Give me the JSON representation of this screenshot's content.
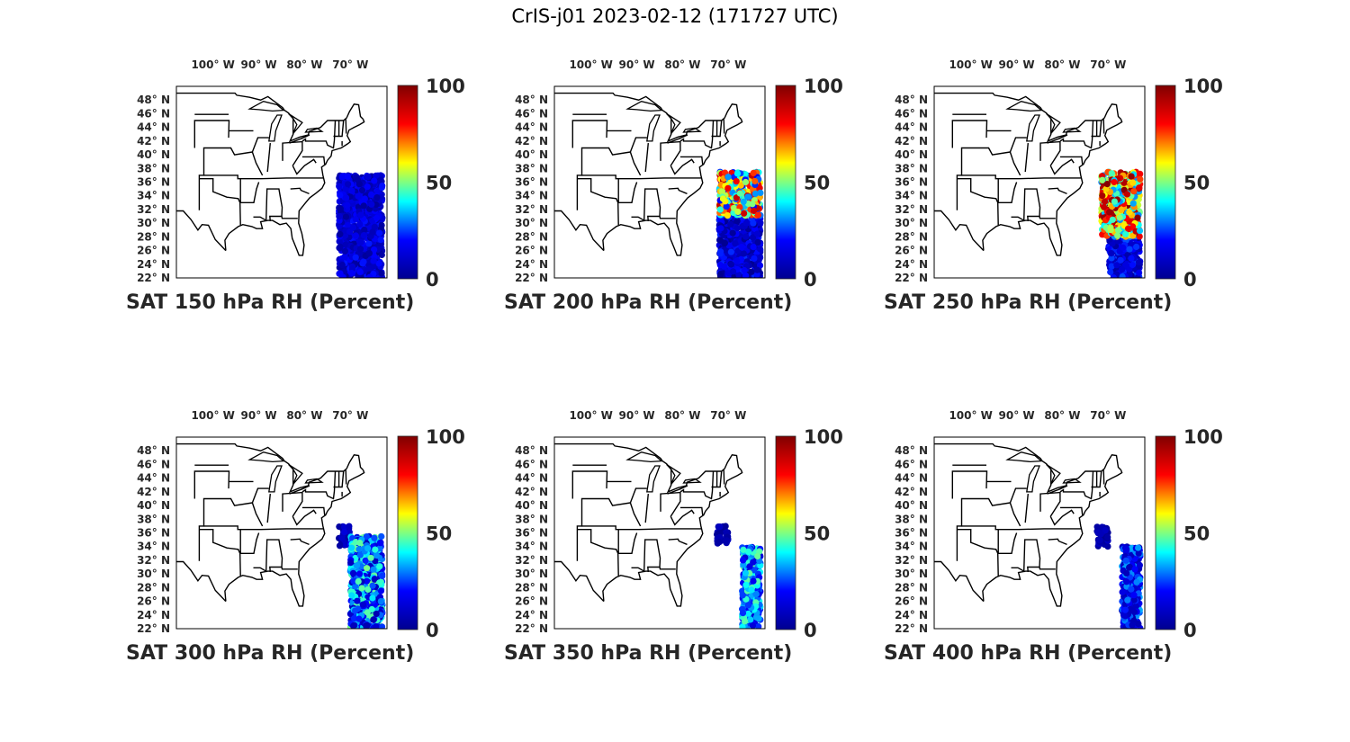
{
  "figure": {
    "title": "CrIS-j01 2023-02-12 (171727 UTC)"
  },
  "colors": {
    "colormap": "jet",
    "jet_stops": [
      "#00008f",
      "#0000ff",
      "#00ffff",
      "#ffff00",
      "#ff0000",
      "#800000"
    ],
    "land_outline": "#000000",
    "background": "#ffffff"
  },
  "map": {
    "lon_range": [
      -108,
      -62
    ],
    "lat_range": [
      22,
      50
    ],
    "lon_ticks": [
      {
        "value": -100,
        "label": "100° W"
      },
      {
        "value": -90,
        "label": "90° W"
      },
      {
        "value": -80,
        "label": "80° W"
      },
      {
        "value": -70,
        "label": "70° W"
      }
    ],
    "lat_ticks": [
      {
        "value": 48,
        "label": "48° N"
      },
      {
        "value": 46,
        "label": "46° N"
      },
      {
        "value": 44,
        "label": "44° N"
      },
      {
        "value": 42,
        "label": "42° N"
      },
      {
        "value": 40,
        "label": "40° N"
      },
      {
        "value": 38,
        "label": "38° N"
      },
      {
        "value": 36,
        "label": "36° N"
      },
      {
        "value": 34,
        "label": "34° N"
      },
      {
        "value": 32,
        "label": "32° N"
      },
      {
        "value": 30,
        "label": "30° N"
      },
      {
        "value": 28,
        "label": "28° N"
      },
      {
        "value": 26,
        "label": "26° N"
      },
      {
        "value": 24,
        "label": "24° N"
      },
      {
        "value": 22,
        "label": "22° N"
      }
    ]
  },
  "colorbar": {
    "ticks": [
      0,
      50,
      100
    ],
    "range": [
      0,
      100
    ]
  },
  "chart_data": [
    {
      "type": "scatter",
      "title": "SAT 150 hPa RH (Percent)",
      "level_hPa": 150,
      "variable": "RH",
      "units": "Percent",
      "clim": [
        0,
        100
      ],
      "regions": [
        {
          "lon": [
            -72.5,
            -63
          ],
          "lat": [
            22,
            37
          ],
          "rh_mean": 12,
          "rh_spread": 10
        }
      ]
    },
    {
      "type": "scatter",
      "title": "SAT 200 hPa RH (Percent)",
      "level_hPa": 200,
      "variable": "RH",
      "units": "Percent",
      "clim": [
        0,
        100
      ],
      "regions": [
        {
          "lon": [
            -72,
            -63
          ],
          "lat": [
            22,
            31
          ],
          "rh_mean": 12,
          "rh_spread": 12
        },
        {
          "lon": [
            -72,
            -63
          ],
          "lat": [
            31,
            37.5
          ],
          "rh_mean": 55,
          "rh_spread": 35
        }
      ]
    },
    {
      "type": "scatter",
      "title": "SAT 250 hPa RH (Percent)",
      "level_hPa": 250,
      "variable": "RH",
      "units": "Percent",
      "clim": [
        0,
        100
      ],
      "regions": [
        {
          "lon": [
            -70,
            -63
          ],
          "lat": [
            22,
            28
          ],
          "rh_mean": 15,
          "rh_spread": 12
        },
        {
          "lon": [
            -71.5,
            -63
          ],
          "lat": [
            28,
            37.5
          ],
          "rh_mean": 65,
          "rh_spread": 35
        }
      ]
    },
    {
      "type": "scatter",
      "title": "SAT 300 hPa RH (Percent)",
      "level_hPa": 300,
      "variable": "RH",
      "units": "Percent",
      "clim": [
        0,
        100
      ],
      "regions": [
        {
          "lon": [
            -72.5,
            -70
          ],
          "lat": [
            34,
            37
          ],
          "rh_mean": 8,
          "rh_spread": 6
        },
        {
          "lon": [
            -70,
            -63
          ],
          "lat": [
            22,
            35.5
          ],
          "rh_mean": 28,
          "rh_spread": 22
        }
      ]
    },
    {
      "type": "scatter",
      "title": "SAT 350 hPa RH (Percent)",
      "level_hPa": 350,
      "variable": "RH",
      "units": "Percent",
      "clim": [
        0,
        100
      ],
      "regions": [
        {
          "lon": [
            -72.5,
            -70
          ],
          "lat": [
            34,
            37
          ],
          "rh_mean": 5,
          "rh_spread": 4
        },
        {
          "lon": [
            -67,
            -63
          ],
          "lat": [
            22,
            34
          ],
          "rh_mean": 30,
          "rh_spread": 18
        }
      ]
    },
    {
      "type": "scatter",
      "title": "SAT 400 hPa RH (Percent)",
      "level_hPa": 400,
      "variable": "RH",
      "units": "Percent",
      "clim": [
        0,
        100
      ],
      "regions": [
        {
          "lon": [
            -72.5,
            -70
          ],
          "lat": [
            34,
            37
          ],
          "rh_mean": 5,
          "rh_spread": 4
        },
        {
          "lon": [
            -67,
            -63
          ],
          "lat": [
            22,
            34
          ],
          "rh_mean": 20,
          "rh_spread": 14
        }
      ]
    }
  ]
}
